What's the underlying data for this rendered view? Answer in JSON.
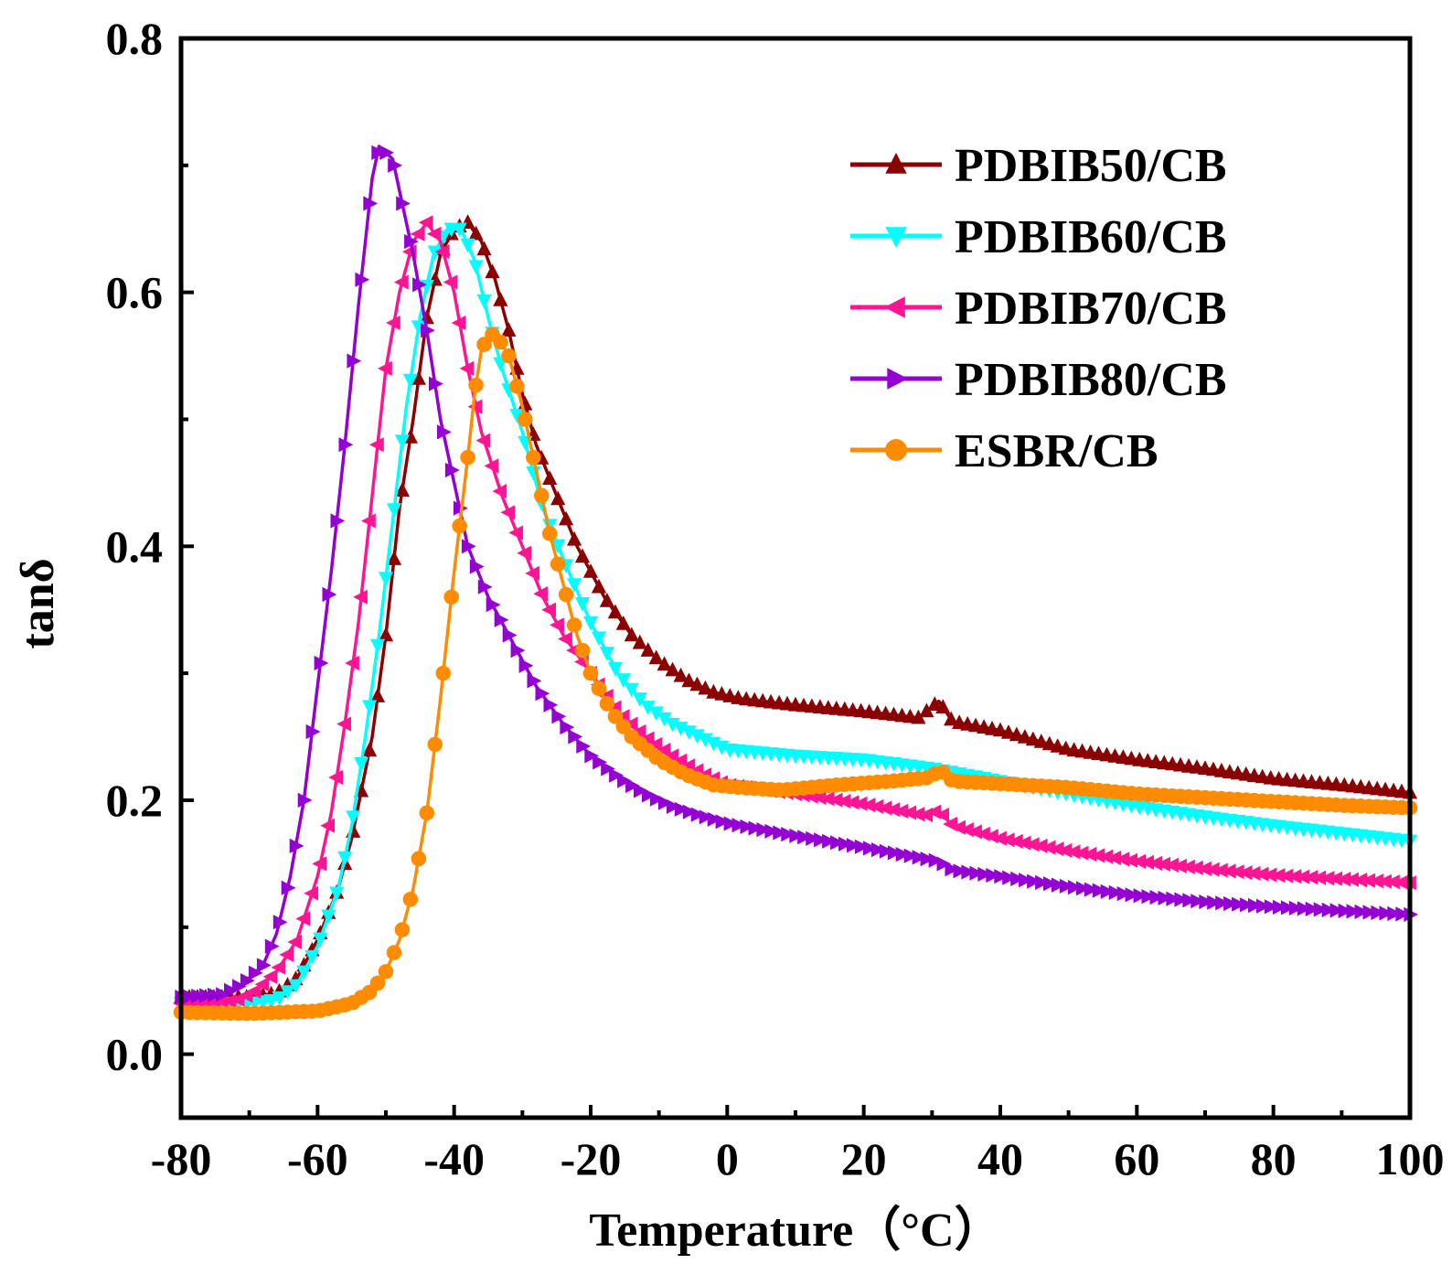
{
  "chart_data": {
    "type": "line",
    "title": "",
    "xlabel": "Temperature（°C）",
    "ylabel": "tanδ",
    "xlim": [
      -80,
      100
    ],
    "ylim": [
      -0.05,
      0.8
    ],
    "xticks": [
      -80,
      -60,
      -40,
      -20,
      0,
      20,
      40,
      60,
      80,
      100
    ],
    "xtick_labels": [
      "-80",
      "-60",
      "-40",
      "-20",
      "0",
      "20",
      "40",
      "60",
      "80",
      "100"
    ],
    "yticks": [
      0.0,
      0.2,
      0.4,
      0.6,
      0.8
    ],
    "ytick_labels": [
      "0.0",
      "0.2",
      "0.4",
      "0.6",
      "0.8"
    ],
    "legend_position": "top-right",
    "series": [
      {
        "name": "PDBIB50/CB",
        "color": "#8B0000",
        "marker": "triangle-up",
        "points": [
          [
            -80,
            0.045
          ],
          [
            -70,
            0.045
          ],
          [
            -66,
            0.048
          ],
          [
            -63,
            0.06
          ],
          [
            -60,
            0.09
          ],
          [
            -57,
            0.13
          ],
          [
            -55,
            0.17
          ],
          [
            -52,
            0.25
          ],
          [
            -50,
            0.33
          ],
          [
            -48,
            0.43
          ],
          [
            -46,
            0.5
          ],
          [
            -44,
            0.58
          ],
          [
            -42,
            0.63
          ],
          [
            -40,
            0.65
          ],
          [
            -38,
            0.655
          ],
          [
            -36,
            0.64
          ],
          [
            -34,
            0.61
          ],
          [
            -32,
            0.57
          ],
          [
            -30,
            0.52
          ],
          [
            -28,
            0.48
          ],
          [
            -25,
            0.44
          ],
          [
            -22,
            0.4
          ],
          [
            -18,
            0.36
          ],
          [
            -14,
            0.33
          ],
          [
            -10,
            0.31
          ],
          [
            -6,
            0.295
          ],
          [
            -2,
            0.285
          ],
          [
            2,
            0.28
          ],
          [
            10,
            0.275
          ],
          [
            20,
            0.27
          ],
          [
            28,
            0.265
          ],
          [
            31,
            0.278
          ],
          [
            33,
            0.262
          ],
          [
            40,
            0.255
          ],
          [
            50,
            0.24
          ],
          [
            60,
            0.232
          ],
          [
            70,
            0.225
          ],
          [
            80,
            0.217
          ],
          [
            90,
            0.212
          ],
          [
            100,
            0.206
          ]
        ]
      },
      {
        "name": "PDBIB60/CB",
        "color": "#00FFFF",
        "marker": "triangle-down",
        "points": [
          [
            -80,
            0.04
          ],
          [
            -70,
            0.04
          ],
          [
            -66,
            0.043
          ],
          [
            -63,
            0.055
          ],
          [
            -60,
            0.085
          ],
          [
            -57,
            0.13
          ],
          [
            -55,
            0.18
          ],
          [
            -53,
            0.25
          ],
          [
            -51,
            0.33
          ],
          [
            -49,
            0.42
          ],
          [
            -47,
            0.51
          ],
          [
            -45,
            0.58
          ],
          [
            -43,
            0.63
          ],
          [
            -41,
            0.65
          ],
          [
            -39,
            0.65
          ],
          [
            -37,
            0.625
          ],
          [
            -35,
            0.58
          ],
          [
            -33,
            0.54
          ],
          [
            -30,
            0.49
          ],
          [
            -27,
            0.43
          ],
          [
            -24,
            0.39
          ],
          [
            -20,
            0.34
          ],
          [
            -16,
            0.3
          ],
          [
            -12,
            0.275
          ],
          [
            -8,
            0.26
          ],
          [
            -4,
            0.25
          ],
          [
            0,
            0.24
          ],
          [
            10,
            0.235
          ],
          [
            20,
            0.232
          ],
          [
            30,
            0.225
          ],
          [
            40,
            0.215
          ],
          [
            50,
            0.205
          ],
          [
            60,
            0.195
          ],
          [
            70,
            0.187
          ],
          [
            80,
            0.18
          ],
          [
            90,
            0.174
          ],
          [
            100,
            0.168
          ]
        ]
      },
      {
        "name": "PDBIB70/CB",
        "color": "#FF1493",
        "marker": "triangle-left",
        "points": [
          [
            -80,
            0.04
          ],
          [
            -72,
            0.042
          ],
          [
            -69,
            0.05
          ],
          [
            -66,
            0.065
          ],
          [
            -63,
            0.09
          ],
          [
            -60,
            0.14
          ],
          [
            -58,
            0.19
          ],
          [
            -56,
            0.26
          ],
          [
            -54,
            0.34
          ],
          [
            -52,
            0.44
          ],
          [
            -50,
            0.54
          ],
          [
            -48,
            0.6
          ],
          [
            -46,
            0.64
          ],
          [
            -44,
            0.655
          ],
          [
            -42,
            0.64
          ],
          [
            -40,
            0.6
          ],
          [
            -38,
            0.54
          ],
          [
            -36,
            0.49
          ],
          [
            -33,
            0.44
          ],
          [
            -30,
            0.4
          ],
          [
            -27,
            0.36
          ],
          [
            -24,
            0.33
          ],
          [
            -20,
            0.3
          ],
          [
            -16,
            0.27
          ],
          [
            -12,
            0.25
          ],
          [
            -8,
            0.235
          ],
          [
            -4,
            0.222
          ],
          [
            0,
            0.212
          ],
          [
            10,
            0.205
          ],
          [
            20,
            0.197
          ],
          [
            29,
            0.188
          ],
          [
            31,
            0.192
          ],
          [
            33,
            0.18
          ],
          [
            40,
            0.17
          ],
          [
            50,
            0.16
          ],
          [
            60,
            0.152
          ],
          [
            70,
            0.146
          ],
          [
            80,
            0.141
          ],
          [
            90,
            0.138
          ],
          [
            100,
            0.135
          ]
        ]
      },
      {
        "name": "PDBIB80/CB",
        "color": "#9400D3",
        "marker": "triangle-right",
        "points": [
          [
            -80,
            0.045
          ],
          [
            -74,
            0.047
          ],
          [
            -71,
            0.055
          ],
          [
            -68,
            0.07
          ],
          [
            -66,
            0.095
          ],
          [
            -64,
            0.14
          ],
          [
            -62,
            0.2
          ],
          [
            -60,
            0.29
          ],
          [
            -58,
            0.38
          ],
          [
            -56,
            0.48
          ],
          [
            -54,
            0.59
          ],
          [
            -52,
            0.69
          ],
          [
            -51,
            0.715
          ],
          [
            -49,
            0.705
          ],
          [
            -48,
            0.68
          ],
          [
            -46,
            0.63
          ],
          [
            -44,
            0.57
          ],
          [
            -42,
            0.5
          ],
          [
            -40,
            0.45
          ],
          [
            -38,
            0.4
          ],
          [
            -35,
            0.36
          ],
          [
            -32,
            0.33
          ],
          [
            -28,
            0.29
          ],
          [
            -24,
            0.26
          ],
          [
            -20,
            0.235
          ],
          [
            -16,
            0.218
          ],
          [
            -12,
            0.205
          ],
          [
            -8,
            0.195
          ],
          [
            -4,
            0.188
          ],
          [
            0,
            0.182
          ],
          [
            10,
            0.172
          ],
          [
            20,
            0.163
          ],
          [
            31,
            0.152
          ],
          [
            33,
            0.145
          ],
          [
            40,
            0.14
          ],
          [
            50,
            0.132
          ],
          [
            60,
            0.125
          ],
          [
            70,
            0.12
          ],
          [
            80,
            0.116
          ],
          [
            90,
            0.113
          ],
          [
            100,
            0.11
          ]
        ]
      },
      {
        "name": "ESBR/CB",
        "color": "#FF8C00",
        "marker": "circle",
        "points": [
          [
            -80,
            0.033
          ],
          [
            -70,
            0.032
          ],
          [
            -60,
            0.034
          ],
          [
            -55,
            0.04
          ],
          [
            -52,
            0.05
          ],
          [
            -50,
            0.065
          ],
          [
            -48,
            0.09
          ],
          [
            -46,
            0.13
          ],
          [
            -44,
            0.19
          ],
          [
            -42,
            0.28
          ],
          [
            -40,
            0.38
          ],
          [
            -38,
            0.47
          ],
          [
            -37,
            0.52
          ],
          [
            -36,
            0.555
          ],
          [
            -35,
            0.565
          ],
          [
            -34,
            0.568
          ],
          [
            -32,
            0.55
          ],
          [
            -30,
            0.51
          ],
          [
            -28,
            0.46
          ],
          [
            -26,
            0.41
          ],
          [
            -24,
            0.37
          ],
          [
            -22,
            0.33
          ],
          [
            -20,
            0.3
          ],
          [
            -17,
            0.27
          ],
          [
            -14,
            0.25
          ],
          [
            -10,
            0.232
          ],
          [
            -6,
            0.22
          ],
          [
            -2,
            0.212
          ],
          [
            2,
            0.21
          ],
          [
            8,
            0.208
          ],
          [
            16,
            0.212
          ],
          [
            24,
            0.215
          ],
          [
            30,
            0.218
          ],
          [
            31,
            0.225
          ],
          [
            33,
            0.215
          ],
          [
            40,
            0.213
          ],
          [
            50,
            0.21
          ],
          [
            60,
            0.205
          ],
          [
            70,
            0.202
          ],
          [
            80,
            0.199
          ],
          [
            90,
            0.196
          ],
          [
            100,
            0.194
          ]
        ]
      }
    ]
  }
}
